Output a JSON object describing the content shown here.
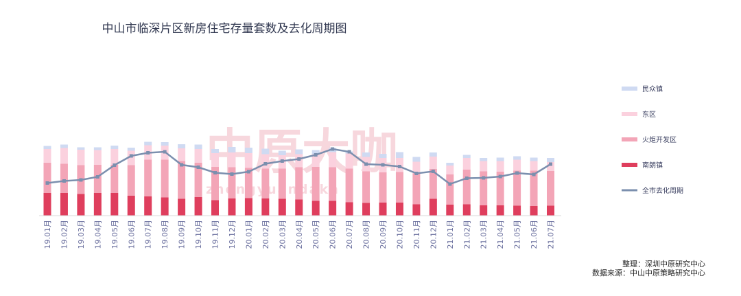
{
  "chart_data": {
    "type": "bar",
    "title": "中山市临深片区新房住宅存量套数及去化周期图",
    "categories": [
      "19.01月",
      "19.02月",
      "19.03月",
      "19.04月",
      "19.05月",
      "19.06月",
      "19.07月",
      "19.08月",
      "19.09月",
      "19.10月",
      "19.11月",
      "19.12月",
      "20.01月",
      "20.02月",
      "20.03月",
      "20.04月",
      "20.05月",
      "20.06月",
      "20.07月",
      "20.08月",
      "20.09月",
      "20.10月",
      "20.11月",
      "20.12月",
      "21.01月",
      "21.02月",
      "21.03月",
      "21.04月",
      "21.05月",
      "21.06月",
      "21.07月"
    ],
    "stacked": true,
    "series": [
      {
        "name": "南朗镇",
        "type": "bar",
        "color": "#df3e5d",
        "values": [
          66,
          66,
          63,
          66,
          66,
          58,
          56,
          53,
          49,
          54,
          45,
          50,
          51,
          50,
          49,
          47,
          43,
          43,
          39,
          37,
          38,
          38,
          33,
          49,
          32,
          33,
          30,
          30,
          29,
          28,
          29
        ]
      },
      {
        "name": "火炬开发区",
        "type": "bar",
        "color": "#f3a5b7",
        "values": [
          88,
          85,
          84,
          82,
          82,
          89,
          107,
          110,
          110,
          100,
          97,
          91,
          88,
          87,
          88,
          94,
          99,
          98,
          98,
          92,
          88,
          89,
          90,
          87,
          88,
          101,
          99,
          98,
          102,
          103,
          101
        ]
      },
      {
        "name": "东区",
        "type": "bar",
        "color": "#fbd1de",
        "values": [
          40,
          46,
          45,
          43,
          46,
          42,
          42,
          41,
          37,
          40,
          40,
          43,
          43,
          42,
          39,
          38,
          37,
          44,
          44,
          42,
          42,
          41,
          34,
          36,
          26,
          34,
          30,
          31,
          32,
          28,
          26
        ]
      },
      {
        "name": "民众镇",
        "type": "bar",
        "color": "#cfdaf2",
        "values": [
          9,
          10,
          7,
          8,
          10,
          9,
          10,
          10,
          12,
          13,
          12,
          16,
          16,
          16,
          13,
          14,
          12,
          12,
          6,
          13,
          12,
          17,
          14,
          12,
          8,
          9,
          9,
          10,
          10,
          10,
          12
        ]
      },
      {
        "name": "全市去化周期",
        "type": "line",
        "color": "#7b8fae",
        "values": [
          95,
          101,
          104,
          113,
          147,
          174,
          183,
          186,
          148,
          141,
          125,
          121,
          128,
          151,
          159,
          165,
          177,
          194,
          186,
          150,
          148,
          143,
          123,
          129,
          92,
          109,
          110,
          114,
          124,
          120,
          150
        ]
      }
    ],
    "legend_position": "right",
    "grid": false
  },
  "legend": [
    {
      "label": "民众镇",
      "color": "#cfdaf2",
      "kind": "bar"
    },
    {
      "label": "东区",
      "color": "#fbd1de",
      "kind": "bar"
    },
    {
      "label": "火炬开发区",
      "color": "#f3a5b7",
      "kind": "bar"
    },
    {
      "label": "南朗镇",
      "color": "#df3e5d",
      "kind": "bar"
    },
    {
      "label": "全市去化周期",
      "color": "#7b8fae",
      "kind": "line"
    }
  ],
  "watermark": {
    "main": "中原大咖",
    "sub": "zhongyuandaka"
  },
  "source": {
    "line1": "整理：深圳中原研究中心",
    "line2": "数据来源：中山中原策略研究中心"
  }
}
